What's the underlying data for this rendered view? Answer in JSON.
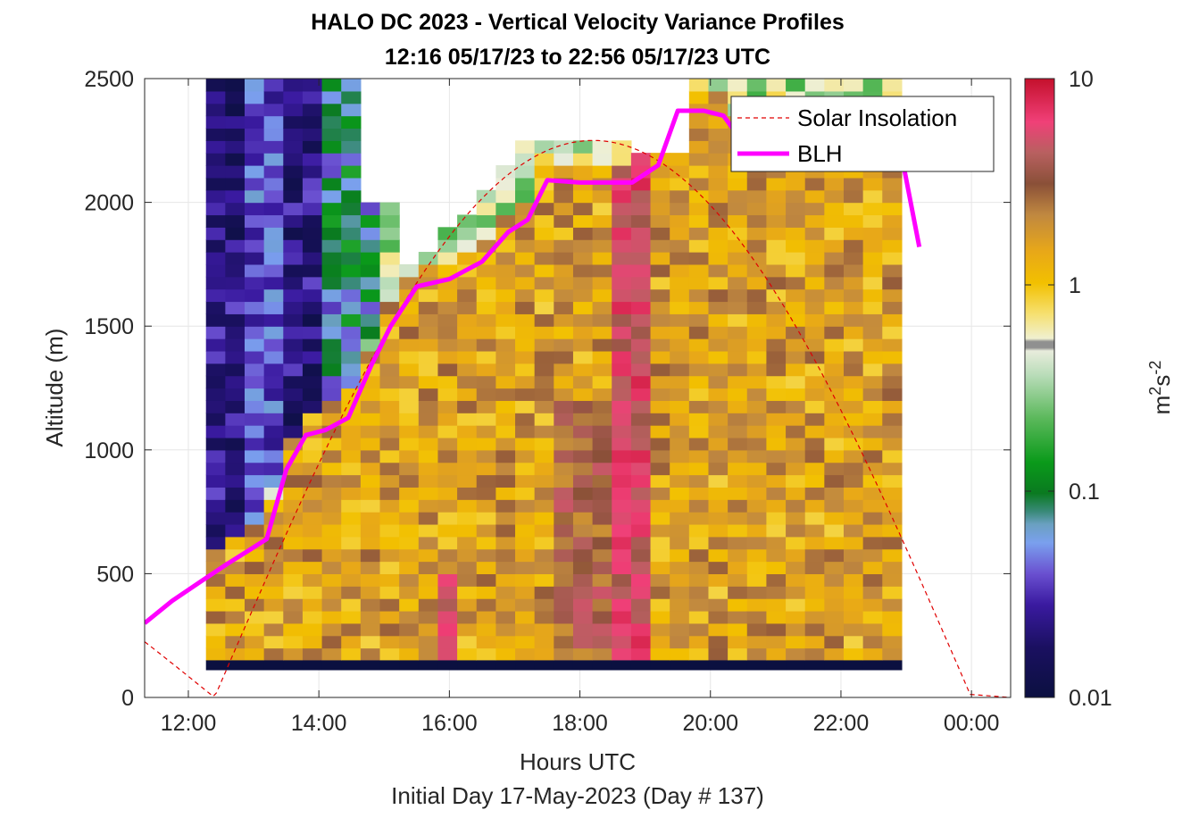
{
  "chart_data": {
    "type": "heatmap",
    "title": "HALO DC 2023 - Vertical Velocity Variance Profiles",
    "subtitle": "12:16 05/17/23 to 22:56 05/17/23  UTC",
    "xlabel": "Hours UTC",
    "xlabel2": "Initial Day 17-May-2023 (Day # 137)",
    "ylabel": "Altitude (m)",
    "x_ticks": [
      "12:00",
      "14:00",
      "16:00",
      "18:00",
      "20:00",
      "22:00",
      "00:00"
    ],
    "x_range_hours": [
      11.33,
      24.6
    ],
    "y_ticks": [
      0,
      500,
      1000,
      1500,
      2000,
      2500
    ],
    "ylim": [
      0,
      2500
    ],
    "grid": true,
    "colorbar": {
      "label": "m²s⁻²",
      "label_base": "m",
      "label_sup1": "2",
      "label_mid": "s",
      "label_sup2": "-2",
      "scale": "log",
      "range": [
        0.01,
        10
      ],
      "ticks": [
        "0.01",
        "0.1",
        "1",
        "10"
      ]
    },
    "legend": {
      "position": "top-right",
      "entries": [
        {
          "name": "Solar Insolation",
          "style": "dashed",
          "color": "#e00000"
        },
        {
          "name": "BLH",
          "style": "solid",
          "color": "#ff00ff"
        }
      ]
    },
    "data_window_hours": [
      12.27,
      22.93
    ],
    "blh": {
      "x": [
        11.33,
        11.75,
        12.2,
        12.6,
        12.9,
        13.2,
        13.5,
        13.8,
        14.1,
        14.45,
        14.8,
        15.1,
        15.5,
        16.0,
        16.5,
        16.9,
        17.2,
        17.5,
        18.0,
        18.5,
        18.8,
        19.2,
        19.5,
        19.9,
        20.2,
        20.5,
        20.9,
        21.2,
        21.5,
        21.8,
        22.2,
        22.6,
        22.9,
        23.2
      ],
      "y": [
        300,
        390,
        470,
        540,
        590,
        640,
        920,
        1060,
        1080,
        1130,
        1340,
        1500,
        1660,
        1690,
        1760,
        1880,
        1930,
        2090,
        2080,
        2080,
        2080,
        2150,
        2370,
        2370,
        2350,
        2240,
        2260,
        2330,
        2320,
        2300,
        2300,
        2300,
        2230,
        1820
      ]
    },
    "solar": {
      "peak_hour": 17.1,
      "peak_altitude": 2250,
      "zero_start_hour": 12.4,
      "zero_end_hour": 24.0,
      "night_end_hour": 24.6
    },
    "colors": {
      "blh": "#ff00ff",
      "solar": "#e00000",
      "grid": "#e6e6e6",
      "axis": "#262626"
    }
  }
}
